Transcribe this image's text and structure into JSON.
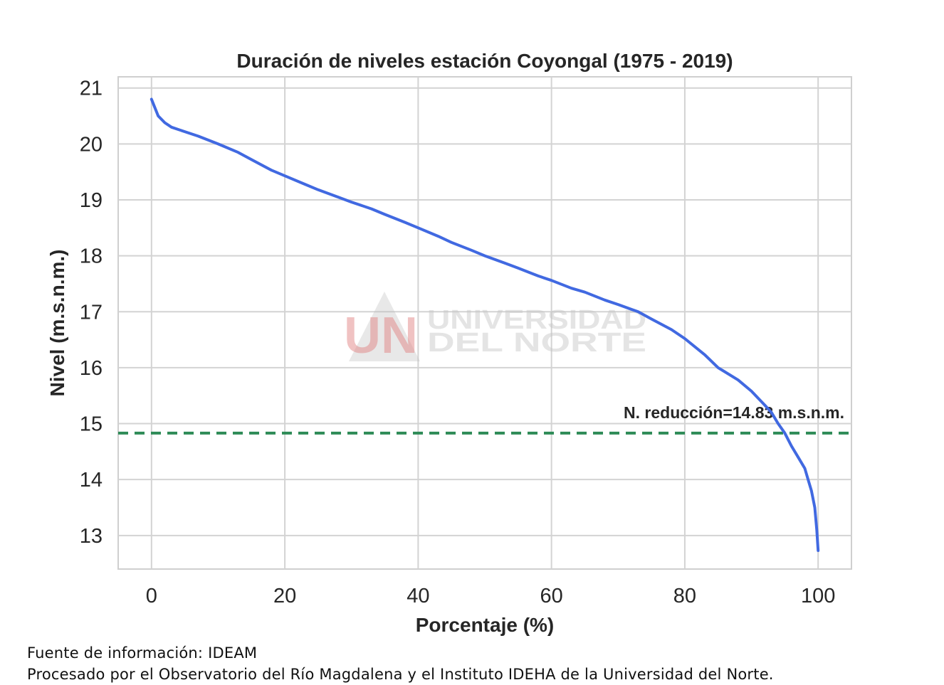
{
  "chart_data": {
    "type": "line",
    "title": "Duración de niveles estación Coyongal (1975 - 2019)",
    "xlabel": "Porcentaje (%)",
    "ylabel": "Nivel (m.s.n.m.)",
    "xlim": [
      -5,
      105
    ],
    "ylim": [
      12.4,
      21.2
    ],
    "xticks": [
      0,
      20,
      40,
      60,
      80,
      100
    ],
    "yticks": [
      13,
      14,
      15,
      16,
      17,
      18,
      19,
      20,
      21
    ],
    "grid": true,
    "series": [
      {
        "color": "#4169e1",
        "x": [
          0,
          0.5,
          1,
          2,
          3,
          5,
          7,
          10,
          13,
          15,
          18,
          20,
          23,
          25,
          28,
          30,
          33,
          35,
          38,
          40,
          43,
          45,
          48,
          50,
          53,
          55,
          58,
          60,
          63,
          65,
          68,
          70,
          73,
          75,
          78,
          80,
          83,
          85,
          88,
          90,
          92,
          93,
          94,
          95,
          96,
          97,
          98,
          98.5,
          99,
          99.5,
          99.8,
          100
        ],
        "y": [
          20.8,
          20.65,
          20.5,
          20.38,
          20.3,
          20.22,
          20.14,
          20.0,
          19.85,
          19.72,
          19.53,
          19.43,
          19.28,
          19.18,
          19.05,
          18.96,
          18.84,
          18.74,
          18.6,
          18.5,
          18.35,
          18.24,
          18.1,
          18.0,
          17.87,
          17.78,
          17.64,
          17.56,
          17.42,
          17.35,
          17.21,
          17.13,
          17.0,
          16.87,
          16.68,
          16.52,
          16.23,
          16.0,
          15.78,
          15.58,
          15.33,
          15.2,
          15.0,
          14.83,
          14.6,
          14.4,
          14.2,
          14.0,
          13.8,
          13.5,
          13.1,
          12.73
        ]
      }
    ],
    "reference_line": {
      "y": 14.83,
      "color": "#2e8b57",
      "label": "N. reducción=14.83 m.s.n.m."
    }
  },
  "watermark": {
    "logo_letters": "UN",
    "line1": "UNIVERSIDAD",
    "line2": "DEL NORTE"
  },
  "source": {
    "line1": "Fuente de información: IDEAM",
    "line2": "Procesado por el Observatorio del Río Magdalena y el Instituto IDEHA de la Universidad del Norte."
  }
}
